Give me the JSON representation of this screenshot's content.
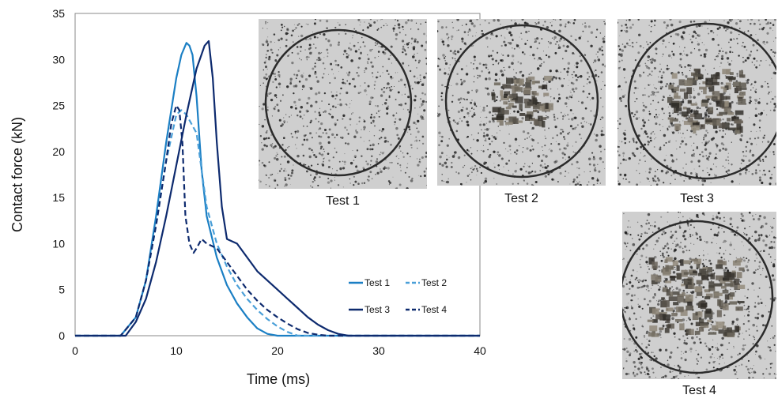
{
  "chart_data": {
    "type": "line",
    "xlabel": "Time (ms)",
    "ylabel": "Contact force (kN)",
    "xlim": [
      0,
      40
    ],
    "ylim": [
      0,
      35
    ],
    "xticks": [
      0,
      10,
      20,
      30,
      40
    ],
    "yticks": [
      0,
      5,
      10,
      15,
      20,
      25,
      30,
      35
    ],
    "grid": false,
    "legend_position": "inside-lower-right",
    "series": [
      {
        "name": "Test 1",
        "color": "#1b7fc4",
        "dash": "solid",
        "x": [
          0,
          4.5,
          6,
          7,
          8,
          9,
          10,
          10.5,
          11,
          11.3,
          11.6,
          12,
          12.5,
          13,
          14,
          15,
          16,
          17,
          18,
          19,
          20,
          40
        ],
        "y": [
          0,
          0,
          2,
          6,
          13,
          21,
          28,
          30.5,
          31.8,
          31.5,
          30.5,
          26,
          18,
          13,
          8.5,
          5.5,
          3.5,
          2,
          0.8,
          0.2,
          0,
          0
        ]
      },
      {
        "name": "Test 2",
        "color": "#4a9fd8",
        "dash": "dashed",
        "x": [
          0,
          4.5,
          6,
          7,
          8,
          9,
          10,
          10.5,
          11,
          11.5,
          12,
          12.5,
          13,
          14,
          15,
          16,
          17,
          18,
          19,
          20,
          21,
          22,
          40
        ],
        "y": [
          0,
          0,
          2,
          6,
          12,
          19,
          24,
          24.5,
          24,
          23,
          22,
          18,
          14,
          10,
          7.5,
          5.5,
          4,
          2.8,
          1.8,
          1,
          0.4,
          0,
          0
        ]
      },
      {
        "name": "Test 3",
        "color": "#0d2a6e",
        "dash": "solid",
        "x": [
          0,
          5,
          6,
          7,
          8,
          9,
          10,
          11,
          12,
          12.8,
          13.2,
          13.6,
          14,
          14.5,
          15,
          16,
          17,
          18,
          19,
          20,
          21,
          22,
          23,
          24,
          25,
          26,
          27,
          40
        ],
        "y": [
          0,
          0,
          1.5,
          4,
          8,
          13,
          18.5,
          24,
          29,
          31.5,
          32,
          28,
          21,
          14,
          10.5,
          10,
          8.5,
          7,
          6,
          5,
          4,
          3,
          2,
          1.2,
          0.6,
          0.2,
          0,
          0
        ]
      },
      {
        "name": "Test 4",
        "color": "#0d2a6e",
        "dash": "dashed",
        "x": [
          0,
          4.5,
          6,
          7,
          8,
          9,
          9.5,
          10,
          10.3,
          10.6,
          10.9,
          11.3,
          11.7,
          12,
          12.5,
          13,
          14,
          15,
          16,
          17,
          18,
          19,
          20,
          21,
          22,
          23,
          24,
          25,
          40
        ],
        "y": [
          0,
          0,
          2,
          6,
          12,
          19,
          23,
          25,
          24.5,
          21,
          13,
          10,
          9,
          9.5,
          10.5,
          10,
          9.5,
          8,
          6.5,
          5,
          3.8,
          2.8,
          2,
          1.3,
          0.7,
          0.3,
          0.1,
          0,
          0
        ]
      }
    ]
  },
  "photos": [
    {
      "caption": "Test 1",
      "damage": 0
    },
    {
      "caption": "Test 2",
      "damage": 1
    },
    {
      "caption": "Test 3",
      "damage": 2
    },
    {
      "caption": "Test 4",
      "damage": 3
    }
  ]
}
